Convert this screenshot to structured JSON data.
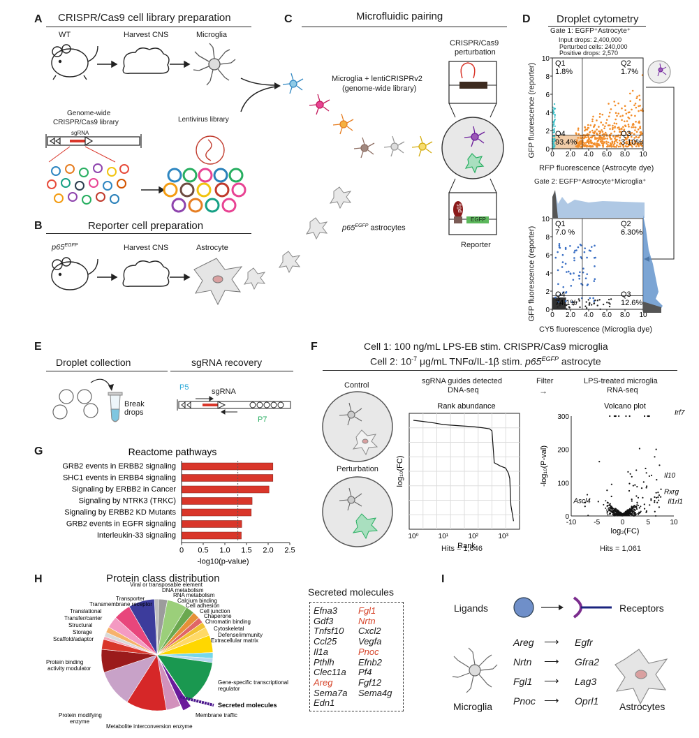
{
  "panelA": {
    "label": "A",
    "title": "CRISPR/Cas9 cell library preparation",
    "wt": "WT",
    "harvest": "Harvest CNS",
    "microglia": "Microglia",
    "genome_wide_1": "Genome-wide",
    "genome_wide_2": "CRISPR/Cas9 library",
    "sgrna": "sgRNA",
    "lentivirus": "Lentivirus library"
  },
  "panelB": {
    "label": "B",
    "title": "Reporter cell preparation",
    "p65": "p65",
    "p65_sup": "EGFP",
    "harvest": "Harvest CNS",
    "astrocyte": "Astrocyte"
  },
  "panelC": {
    "label": "C",
    "title": "Microfluidic pairing",
    "crispr_1": "CRISPR/Cas9",
    "crispr_2": "perturbation",
    "microglia_1": "Microglia + lentiCRISPRv2",
    "microglia_2": "(genome-wide library)",
    "astro_p65": "p65",
    "astro_sup": "EGFP",
    "astro_rest": "astrocytes",
    "p65_label": "p65",
    "egfp_label": "EGFP",
    "reporter": "Reporter"
  },
  "panelD": {
    "label": "D",
    "title": "Droplet cytometry",
    "gate1": "Gate 1: EGFP⁺Astrocyte⁺",
    "input": "Input drops: 2,400,000",
    "perturbed": "Perturbed cells: 240,000",
    "positive": "Positive drops: 2,570",
    "gate2": "Gate 2: EGFP⁺Astrocyte⁺Microglia⁺",
    "ylabel1": "GFP fluorescence (reporter)",
    "xlabel1": "RFP fluorescence (Astrocyte dye)",
    "ylabel2": "GFP fluorescence (reporter)",
    "xlabel2": "CY5 fluorescence (Microglia dye)"
  },
  "panelE": {
    "label": "E",
    "collection": "Droplet collection",
    "recovery": "sgRNA recovery",
    "break_1": "Break",
    "break_2": "drops",
    "p5": "P5",
    "p7": "P7",
    "sgrna": "sgRNA"
  },
  "panelF": {
    "label": "F",
    "cell1": "Cell 1: 100 ng/mL LPS-EB stim. CRISPR/Cas9 microglia",
    "cell2_pre": "Cell 2: 10",
    "cell2_sup": "-7",
    "cell2_mid": " μg/mL TNFα/IL-1β stim. ",
    "cell2_p65": "p65",
    "cell2_egfp": "EGFP",
    "cell2_post": " astrocyte",
    "control": "Control",
    "perturbation": "Perturbation",
    "sgrna_1": "sgRNA guides detected",
    "sgrna_2": "DNA-seq",
    "filter": "Filter",
    "arrow": "→",
    "lps_1": "LPS-treated microglia",
    "lps_2": "RNA-seq",
    "hits1": "Hits = 1,646",
    "hits2": "Hits = 1,061"
  },
  "panelG": {
    "label": "G",
    "title": "Reactome pathways",
    "xlabel": "-log10(p-value)"
  },
  "panelH": {
    "label": "H",
    "title": "Protein class distribution",
    "secreted_title": "Secreted molecules",
    "slices": [
      "Viral or transposable element",
      "DNA metabolism",
      "RNA metabolism",
      "Calcium binding",
      "Cell adhesion",
      "Cell junction",
      "Chaperone",
      "Chromatin binding",
      "Cytoskeletal",
      "Defense/immunity",
      "Extracellular matrix",
      "Gene-specific transcriptional",
      "regulator",
      "Secreted molecules",
      "Membrane traffic",
      "Metabolite interconversion enzyme",
      "Protein modifying",
      "enzyme",
      "Protein binding",
      "activity modulator",
      "Scaffold/adaptor",
      "Storage",
      "Structural",
      "Transfer/carrier",
      "Translational",
      "Transmembrane receptor",
      "Transporter"
    ],
    "genes_col1": [
      "Efna3",
      "Gdf3",
      "Tnfsf10",
      "Ccl25",
      "Il1a",
      "Pthlh",
      "Clec11a",
      "Areg",
      "Sema7a",
      "Edn1"
    ],
    "genes_col2": [
      "Fgl1",
      "Nrtn",
      "Cxcl2",
      "Vegfa",
      "Pnoc",
      "Efnb2",
      "Pf4",
      "Fgf12",
      "Sema4g"
    ]
  },
  "panelI": {
    "label": "I",
    "ligands": "Ligands",
    "receptors": "Receptors",
    "microglia": "Microglia",
    "astrocytes": "Astrocytes",
    "pairs": [
      {
        "ligand": "Areg",
        "receptor": "Egfr"
      },
      {
        "ligand": "Nrtn",
        "receptor": "Gfra2"
      },
      {
        "ligand": "Fgl1",
        "receptor": "Lag3"
      },
      {
        "ligand": "Pnoc",
        "receptor": "Oprl1"
      }
    ]
  },
  "chart_data": [
    {
      "type": "scatter",
      "title": "Gate 1: EGFP⁺Astrocyte⁺",
      "xlabel": "RFP fluorescence (Astrocyte dye)",
      "ylabel": "GFP fluorescence (reporter)",
      "xlim": [
        0,
        10
      ],
      "ylim": [
        0,
        10
      ],
      "xticks": [
        "0",
        "2.0",
        "4.0",
        "6.0",
        "8.0",
        "10"
      ],
      "yticks": [
        "0",
        "2",
        "4",
        "6",
        "8",
        "10"
      ],
      "quadrants": {
        "Q1": "1.8%",
        "Q2": "1.7%",
        "Q3": "3.10%",
        "Q4": "93.4%"
      },
      "quadrant_labels": [
        "Q1",
        "Q2",
        "Q3",
        "Q4"
      ]
    },
    {
      "type": "scatter",
      "title": "Gate 2: EGFP⁺Astrocyte⁺Microglia⁺",
      "xlabel": "CY5 fluorescence (Microglia dye)",
      "ylabel": "GFP fluorescence (reporter)",
      "xlim": [
        0,
        10
      ],
      "ylim": [
        0,
        10
      ],
      "xticks": [
        "0",
        "2.0",
        "4.0",
        "6.0",
        "8.0",
        "10"
      ],
      "yticks": [
        "0",
        "2",
        "4",
        "6",
        "8",
        "10"
      ],
      "quadrants": {
        "Q1": "7.0 %",
        "Q2": "6.30%",
        "Q3": "12.6%",
        "Q4": "74.1%"
      },
      "quadrant_labels": [
        "Q1",
        "Q2",
        "Q3",
        "Q4"
      ]
    },
    {
      "type": "line",
      "title": "Rank abundance",
      "xlabel": "Rank",
      "ylabel": "log₁₀(FC)",
      "xscale": "log",
      "xticks": [
        "10⁰",
        "10¹",
        "10²",
        "10³"
      ],
      "x": [
        1,
        2,
        5,
        10,
        30,
        100,
        200,
        350,
        420,
        500,
        800,
        1200,
        1500,
        1646,
        1800,
        2200
      ],
      "values": [
        1.0,
        0.99,
        0.975,
        0.96,
        0.95,
        0.94,
        0.93,
        0.92,
        0.9,
        0.6,
        0.57,
        0.55,
        0.5,
        0.45,
        0.2,
        0.05
      ]
    },
    {
      "type": "scatter",
      "title": "Volcano plot",
      "xlabel": "log₂(FC)",
      "ylabel": "-log₁₀(P-val)",
      "xlim": [
        -10,
        10
      ],
      "ylim": [
        0,
        300
      ],
      "xticks": [
        "-10",
        "-5",
        "0",
        "5",
        "10"
      ],
      "yticks": [
        "0",
        "100",
        "200",
        "300"
      ],
      "annotations": [
        {
          "label": "Irf7",
          "x": 8.5,
          "y": 300
        },
        {
          "label": "Il10",
          "x": 7.0,
          "y": 120
        },
        {
          "label": "Rxrg",
          "x": 7.0,
          "y": 70
        },
        {
          "label": "Il1rl1",
          "x": 8.0,
          "y": 45
        },
        {
          "label": "Ascl4",
          "x": -6.0,
          "y": 30
        }
      ]
    },
    {
      "type": "bar",
      "orientation": "horizontal",
      "title": "Reactome pathways",
      "xlabel": "-log10(p-value)",
      "xlim": [
        0,
        2.5
      ],
      "xticks": [
        "0",
        "0.5",
        "1.0",
        "1.5",
        "2.0",
        "2.5"
      ],
      "categories": [
        "GRB2 events in ERBB2 signaling",
        "SHC1 events in ERBB4 signaling",
        "Signaling by ERBB2 in Cancer",
        "Signaling by NTRK3 (TRKC)",
        "Signaling by ERBB2 KD Mutants",
        "GRB2 events in EGFR signaling",
        "Interleukin-33 signaling"
      ],
      "values": [
        2.11,
        2.11,
        2.02,
        1.63,
        1.61,
        1.39,
        1.38
      ],
      "threshold": 1.3,
      "color": "#d9362a"
    },
    {
      "type": "pie",
      "title": "Protein class distribution",
      "categories": [
        "Viral or transposable element",
        "DNA metabolism",
        "RNA metabolism",
        "Calcium binding",
        "Cell adhesion",
        "Cell junction",
        "Chaperone",
        "Chromatin binding",
        "Cytoskeletal",
        "Defense/immunity",
        "Extracellular matrix",
        "Gene-specific transcriptional regulator",
        "Secreted molecules",
        "Membrane traffic",
        "Metabolite interconversion enzyme",
        "Protein modifying enzyme",
        "Protein binding activity modulator",
        "Scaffold/adaptor",
        "Storage",
        "Structural",
        "Transfer/carrier",
        "Translational",
        "Transmembrane receptor",
        "Transporter"
      ],
      "values": [
        1.5,
        3,
        7,
        3,
        2.5,
        2,
        2,
        3,
        6,
        2,
        1.5,
        16,
        3,
        5,
        14,
        13,
        8,
        3.5,
        1,
        1.5,
        2,
        4,
        6,
        9
      ],
      "colors": [
        "#bfbfbf",
        "#9c9c9c",
        "#9bcf7a",
        "#6aa84f",
        "#e69138",
        "#e06666",
        "#f1c232",
        "#ffd966",
        "#ffd700",
        "#76d7ea",
        "#b4d7f0",
        "#1a9850",
        "#6a1b9a",
        "#d291bc",
        "#d62728",
        "#c8a2c8",
        "#9b1b1b",
        "#d9362a",
        "#f4a7b9",
        "#d9d9d9",
        "#f6b26b",
        "#f49ac2",
        "#e8467c",
        "#3c3c9c"
      ]
    }
  ]
}
